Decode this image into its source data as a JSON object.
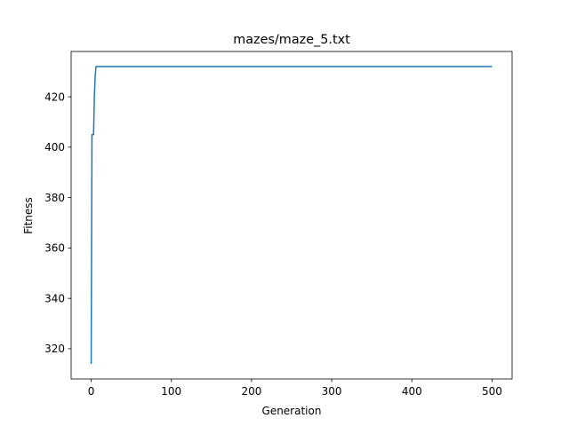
{
  "chart_data": {
    "type": "line",
    "title": "mazes/maze_5.txt",
    "xlabel": "Generation",
    "ylabel": "Fitness",
    "xlim": [
      -25,
      525
    ],
    "ylim": [
      308,
      438
    ],
    "grid": false,
    "line_color": "#1f77b4",
    "xticks": [
      0,
      100,
      200,
      300,
      400,
      500
    ],
    "yticks": [
      320,
      340,
      360,
      380,
      400,
      420
    ],
    "series": [
      {
        "x": [
          0,
          1,
          2,
          3,
          4,
          5,
          6,
          7,
          10,
          50,
          100,
          200,
          300,
          400,
          500
        ],
        "y": [
          314,
          405,
          405,
          405,
          420,
          428,
          432,
          432,
          432,
          432,
          432,
          432,
          432,
          432,
          432
        ]
      }
    ]
  }
}
